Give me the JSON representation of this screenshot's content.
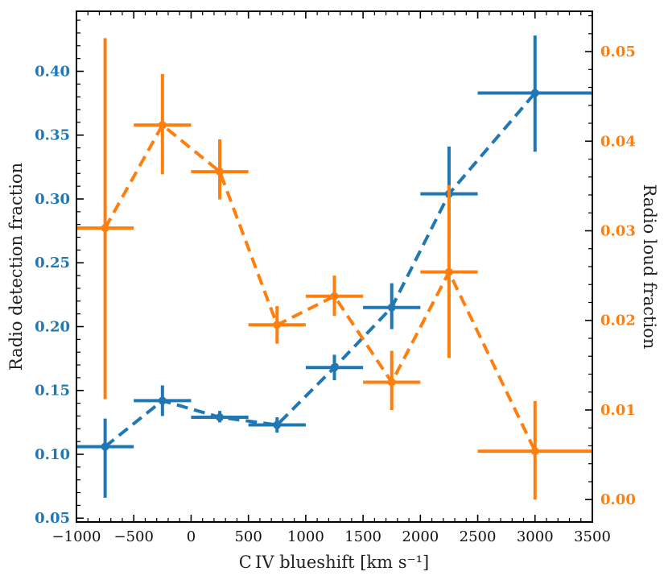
{
  "chart_data": {
    "type": "scatter",
    "title": "",
    "xlabel": "C IV blueshift [km s⁻¹]",
    "ylabel_left": "Radio detection fraction",
    "ylabel_right": "Radio loud fraction",
    "xlim": [
      -1000,
      3500
    ],
    "ylim_left": [
      0.047,
      0.447
    ],
    "ylim_right": [
      -0.0025,
      0.0545
    ],
    "x_ticks": [
      -1000,
      -500,
      0,
      500,
      1000,
      1500,
      2000,
      2500,
      3000,
      3500
    ],
    "x_tick_labels": [
      "−1000",
      "−500",
      "0",
      "500",
      "1000",
      "1500",
      "2000",
      "2500",
      "3000",
      "3500"
    ],
    "y_left_ticks": [
      0.05,
      0.1,
      0.15,
      0.2,
      0.25,
      0.3,
      0.35,
      0.4
    ],
    "y_left_tick_labels": [
      "0.05",
      "0.10",
      "0.15",
      "0.20",
      "0.25",
      "0.30",
      "0.35",
      "0.40"
    ],
    "y_right_ticks": [
      0.0,
      0.01,
      0.02,
      0.03,
      0.04,
      0.05
    ],
    "y_right_tick_labels": [
      "0.00",
      "0.01",
      "0.02",
      "0.03",
      "0.04",
      "0.05"
    ],
    "grid": false,
    "series": [
      {
        "axis": "left",
        "color": "#1f77b4",
        "x": [
          -750,
          -250,
          250,
          750,
          1250,
          1750,
          2250,
          3000
        ],
        "x_err": [
          250,
          250,
          250,
          250,
          250,
          250,
          250,
          500
        ],
        "y": [
          0.106,
          0.142,
          0.129,
          0.123,
          0.168,
          0.215,
          0.304,
          0.383
        ],
        "y_low": [
          0.066,
          0.13,
          0.125,
          0.117,
          0.158,
          0.198,
          0.27,
          0.337
        ],
        "y_high": [
          0.128,
          0.154,
          0.134,
          0.129,
          0.178,
          0.234,
          0.341,
          0.428
        ]
      },
      {
        "axis": "right",
        "color": "#ff7f0e",
        "x": [
          -750,
          -250,
          250,
          750,
          1250,
          1750,
          2250,
          3000
        ],
        "x_err": [
          250,
          250,
          250,
          250,
          250,
          250,
          250,
          500
        ],
        "y": [
          0.0303,
          0.0418,
          0.0366,
          0.0195,
          0.0227,
          0.0131,
          0.0254,
          0.0054
        ],
        "y_low": [
          0.0112,
          0.0363,
          0.0335,
          0.0174,
          0.0205,
          0.01,
          0.0158,
          0.0
        ],
        "y_high": [
          0.0515,
          0.0475,
          0.0402,
          0.0216,
          0.025,
          0.0166,
          0.0351,
          0.011
        ]
      }
    ]
  }
}
